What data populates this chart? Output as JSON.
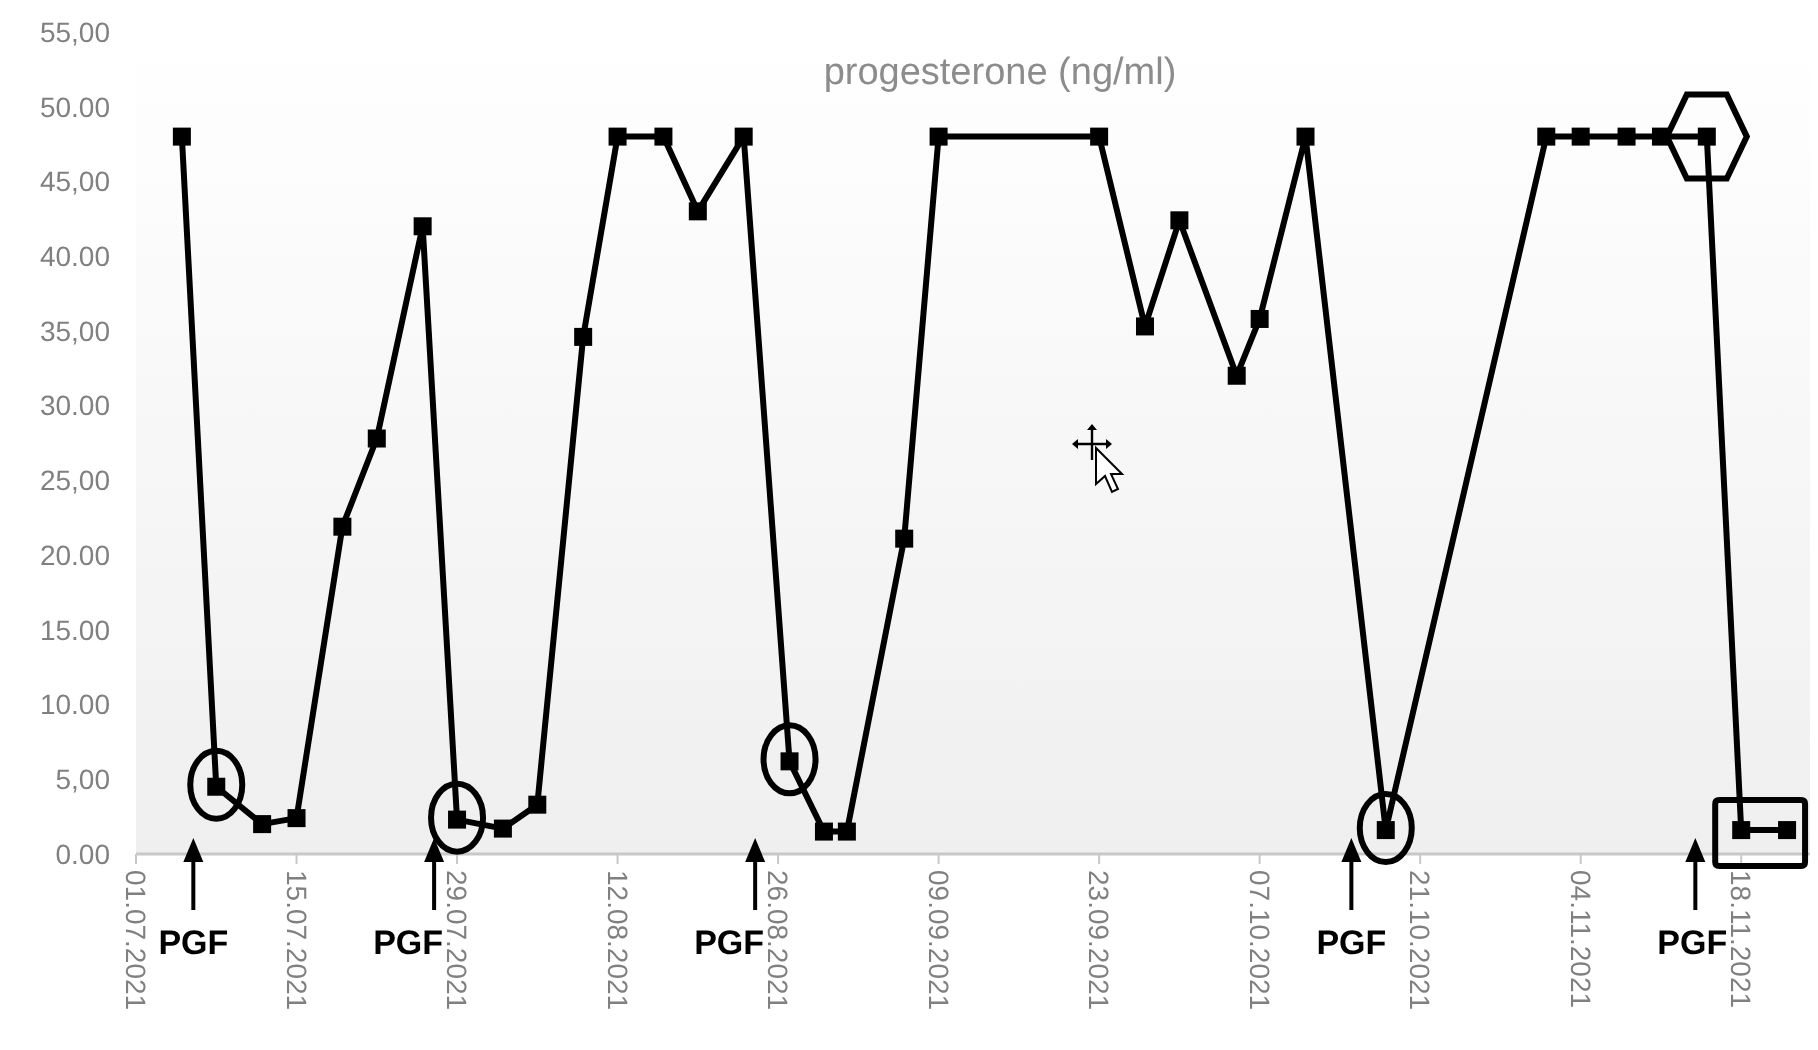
{
  "chart_data": {
    "type": "line",
    "title": "progesterone  (ng/ml)",
    "series": [
      {
        "color": "#000000",
        "marker": "square",
        "line_style": "solid",
        "x": [
          "2021-07-05",
          "2021-07-08",
          "2021-07-12",
          "2021-07-15",
          "2021-07-19",
          "2021-07-22",
          "2021-07-26",
          "2021-07-29",
          "2021-08-02",
          "2021-08-05",
          "2021-08-09",
          "2021-08-12",
          "2021-08-16",
          "2021-08-19",
          "2021-08-23",
          "2021-08-27",
          "2021-08-30",
          "2021-09-01",
          "2021-09-06",
          "2021-09-09",
          "2021-09-23",
          "2021-09-27",
          "2021-09-30",
          "2021-10-05",
          "2021-10-07",
          "2021-10-11",
          "2021-10-18",
          "2021-11-01",
          "2021-11-04",
          "2021-11-08",
          "2021-11-11",
          "2021-11-15",
          "2021-11-18",
          "2021-11-22"
        ],
        "values": [
          48,
          4.5,
          2,
          2.4,
          21.9,
          27.8,
          42,
          2.3,
          1.7,
          3.3,
          34.6,
          48,
          48,
          43,
          48,
          6.2,
          1.5,
          1.5,
          21.1,
          48,
          48,
          35.3,
          42.4,
          32,
          35.8,
          48,
          1.6,
          48,
          48,
          48,
          48,
          48,
          1.6,
          1.6
        ]
      }
    ],
    "xlim": [
      "2021-07-01",
      "2021-11-24"
    ],
    "xticks": [
      {
        "value": "2021-07-01",
        "label": "01.07.2021"
      },
      {
        "value": "2021-07-15",
        "label": "15.07.2021"
      },
      {
        "value": "2021-07-29",
        "label": "29.07.2021"
      },
      {
        "value": "2021-08-12",
        "label": "12.08.2021"
      },
      {
        "value": "2021-08-26",
        "label": "26.08.2021"
      },
      {
        "value": "2021-09-09",
        "label": "09.09.2021"
      },
      {
        "value": "2021-09-23",
        "label": "23.09.2021"
      },
      {
        "value": "2021-10-07",
        "label": "07.10.2021"
      },
      {
        "value": "2021-10-21",
        "label": "21.10.2021"
      },
      {
        "value": "2021-11-04",
        "label": "04.11.2021"
      },
      {
        "value": "2021-11-18",
        "label": "18.11.2021"
      }
    ],
    "ylim": [
      0,
      55
    ],
    "yticks": [
      {
        "value": 0,
        "label": "0.00"
      },
      {
        "value": 5,
        "label": "5,00"
      },
      {
        "value": 10,
        "label": "10.00"
      },
      {
        "value": 15,
        "label": "15.00"
      },
      {
        "value": 20,
        "label": "20.00"
      },
      {
        "value": 25,
        "label": "25,00"
      },
      {
        "value": 30,
        "label": "30.00"
      },
      {
        "value": 35,
        "label": "35,00"
      },
      {
        "value": 40,
        "label": "40.00"
      },
      {
        "value": 45,
        "label": "45,00"
      },
      {
        "value": 50,
        "label": "50.00"
      },
      {
        "value": 55,
        "label": "55,00"
      }
    ],
    "grid": false,
    "annotations": [
      {
        "text": "PGF",
        "x": "2021-07-06",
        "y": 0
      },
      {
        "text": "PGF",
        "x": "2021-07-27",
        "y": 0
      },
      {
        "text": "PGF",
        "x": "2021-08-24",
        "y": 0
      },
      {
        "text": "PGF",
        "x": "2021-10-15",
        "y": 0
      },
      {
        "text": "PGF",
        "x": "2021-11-14",
        "y": 0
      }
    ]
  }
}
